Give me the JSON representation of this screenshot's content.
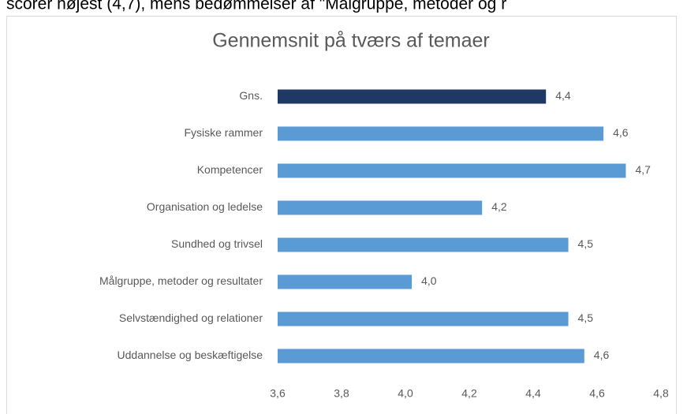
{
  "header_text": "scorer højest (4,7), mens bedømmelser af \"Målgruppe, metoder og r",
  "chart_data": {
    "type": "barh",
    "title": "Gennemsnit på tværs af temaer",
    "categories": [
      "Gns.",
      "Fysiske rammer",
      "Kompetencer",
      "Organisation og ledelse",
      "Sundhed og trivsel",
      "Målgruppe, metoder og resultater",
      "Selvstændighed og relationer",
      "Uddannelse og beskæftigelse"
    ],
    "values": [
      4.44,
      4.62,
      4.69,
      4.24,
      4.51,
      4.02,
      4.51,
      4.56
    ],
    "value_labels": [
      "4,4",
      "4,6",
      "4,7",
      "4,2",
      "4,5",
      "4,0",
      "4,5",
      "4,6"
    ],
    "colors": [
      "#1f3864",
      "#5b9bd5",
      "#5b9bd5",
      "#5b9bd5",
      "#5b9bd5",
      "#5b9bd5",
      "#5b9bd5",
      "#5b9bd5"
    ],
    "xlim": [
      3.6,
      4.8
    ],
    "xticks": [
      {
        "value": 3.6,
        "label": "3,6"
      },
      {
        "value": 3.8,
        "label": "3,8"
      },
      {
        "value": 4.0,
        "label": "4,0"
      },
      {
        "value": 4.2,
        "label": "4,2"
      },
      {
        "value": 4.4,
        "label": "4,4"
      },
      {
        "value": 4.6,
        "label": "4,6"
      },
      {
        "value": 4.8,
        "label": "4,8"
      }
    ],
    "grid": false
  }
}
